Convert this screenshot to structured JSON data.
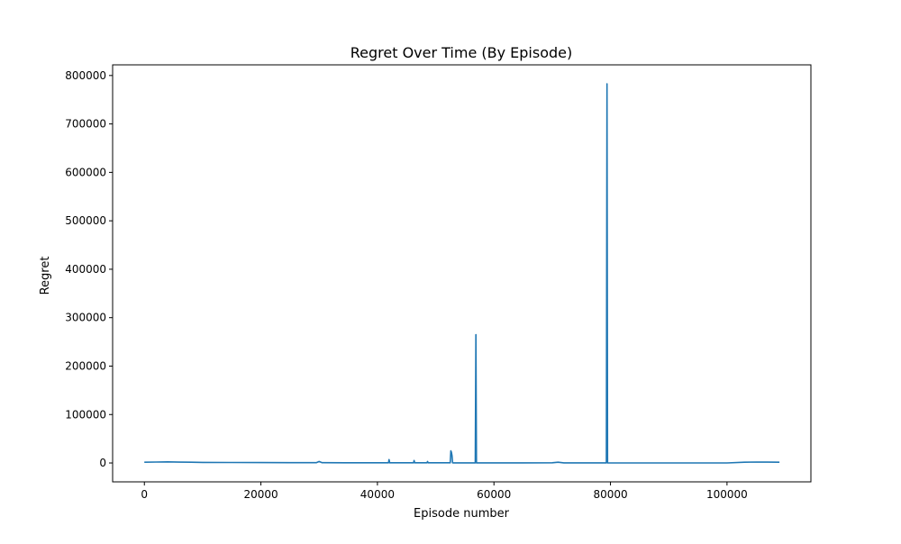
{
  "chart_data": {
    "type": "line",
    "title": "Regret Over Time (By Episode)",
    "xlabel": "Episode number",
    "ylabel": "Regret",
    "xlim": [
      -5450,
      114400
    ],
    "ylim": [
      -39000,
      822000
    ],
    "xticks": [
      0,
      20000,
      40000,
      60000,
      80000,
      100000
    ],
    "xtick_labels": [
      "0",
      "20000",
      "40000",
      "60000",
      "80000",
      "100000"
    ],
    "yticks": [
      0,
      100000,
      200000,
      300000,
      400000,
      500000,
      600000,
      700000,
      800000
    ],
    "ytick_labels": [
      "0",
      "100000",
      "200000",
      "300000",
      "400000",
      "500000",
      "600000",
      "700000",
      "800000"
    ],
    "grid": false,
    "series": [
      {
        "color": "#1f77b4",
        "x": [
          0,
          2000,
          4000,
          6000,
          8000,
          10000,
          15000,
          20000,
          25000,
          29500,
          30000,
          30500,
          35000,
          40000,
          41900,
          42000,
          42100,
          45000,
          46200,
          46300,
          46400,
          48500,
          48600,
          48700,
          50000,
          52500,
          52600,
          52700,
          52800,
          52900,
          53000,
          56800,
          56900,
          57000,
          57100,
          60000,
          65000,
          70000,
          71000,
          72000,
          75000,
          79300,
          79400,
          79500,
          79600,
          85000,
          90000,
          95000,
          100000,
          103000,
          105000,
          107000,
          109000
        ],
        "y": [
          1500,
          2000,
          2200,
          1800,
          1500,
          1200,
          1000,
          800,
          700,
          600,
          3000,
          600,
          500,
          500,
          500,
          7000,
          500,
          500,
          500,
          5000,
          500,
          500,
          3000,
          500,
          500,
          500,
          25000,
          22000,
          15000,
          500,
          300,
          300,
          265000,
          300,
          200,
          200,
          200,
          500,
          1500,
          300,
          200,
          200,
          783000,
          200,
          100,
          100,
          100,
          100,
          100,
          1500,
          2000,
          1800,
          1500
        ]
      }
    ]
  }
}
